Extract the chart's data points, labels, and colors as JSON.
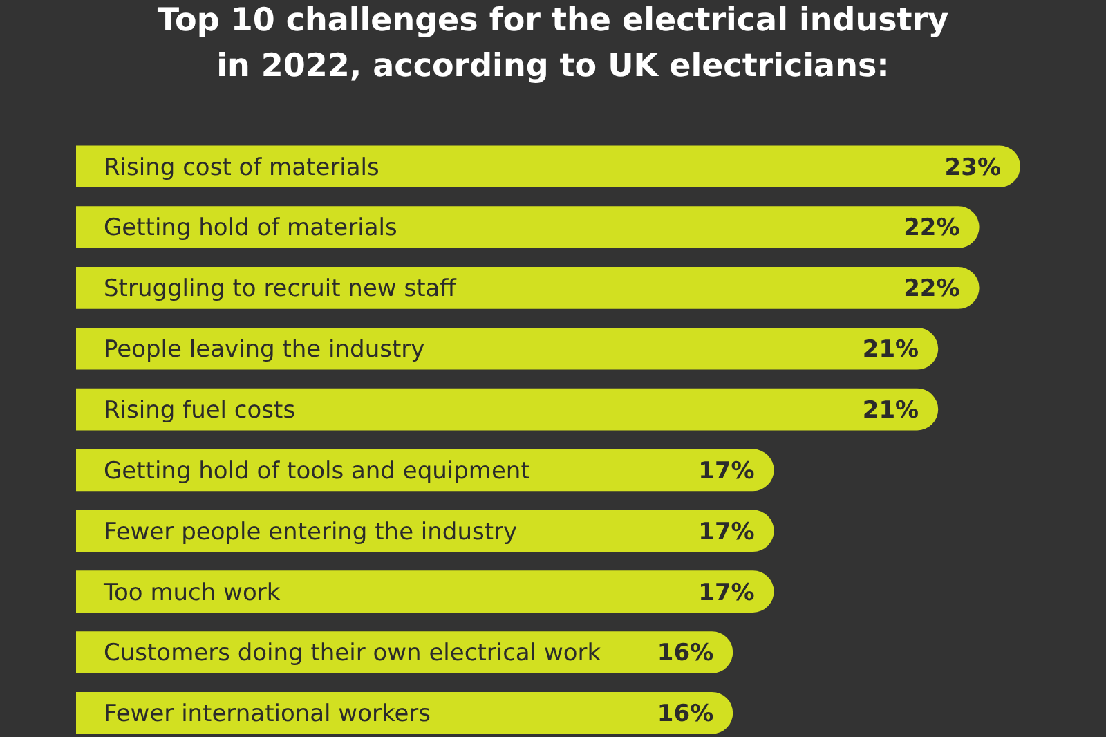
{
  "chart_data": {
    "type": "bar",
    "orientation": "horizontal",
    "title": "Top 10 challenges for the electrical industry in 2022, according to UK electricians:",
    "categories": [
      "Rising cost of materials",
      "Getting hold of materials",
      "Struggling to recruit new staff",
      "People leaving the industry",
      "Rising fuel costs",
      "Getting hold of tools and equipment",
      "Fewer people entering the industry",
      "Too much work",
      "Customers doing their own electrical work",
      "Fewer international workers"
    ],
    "values": [
      23,
      22,
      22,
      21,
      21,
      17,
      17,
      17,
      16,
      16
    ],
    "value_labels": [
      "23%",
      "22%",
      "22%",
      "21%",
      "21%",
      "17%",
      "17%",
      "17%",
      "16%",
      "16%"
    ],
    "color": "#d2e021"
  }
}
